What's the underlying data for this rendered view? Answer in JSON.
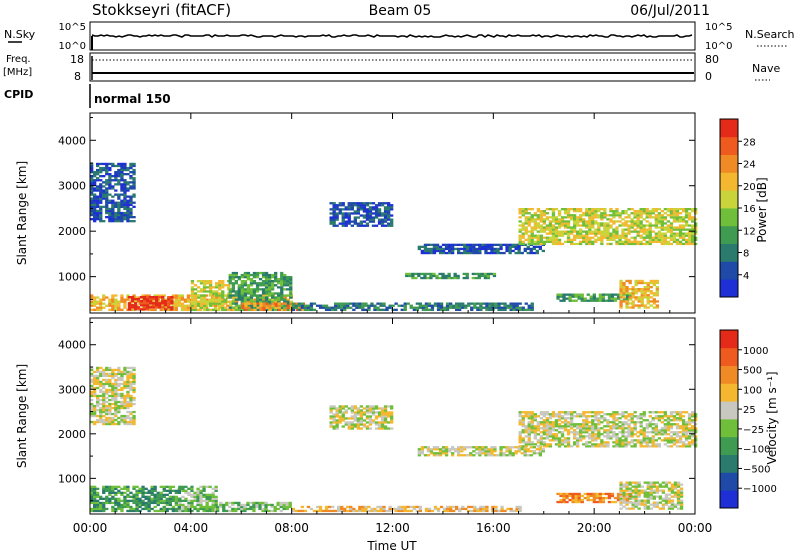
{
  "header": {
    "site": "Stokkseyri (fitACF)",
    "beam": "Beam 05",
    "date": "06/Jul/2011"
  },
  "strip": {
    "nsky_label": "N.Sky",
    "nsky_ticks": [
      "10^5",
      "10^0"
    ],
    "nsearch_label": "N.Search",
    "nsearch_ticks": [
      "10^5",
      "10^0"
    ],
    "freq_label": "Freq.",
    "freq_unit": "[MHz]",
    "freq_ticks": [
      "18",
      "8"
    ],
    "nave_label": "Nave",
    "nave_ticks": [
      "80",
      "0"
    ],
    "cpid_label": "CPID",
    "cpid_value": "normal 150"
  },
  "chart_data": [
    {
      "type": "heatmap",
      "name": "power-panel",
      "xlabel": "",
      "ylabel": "Slant Range [km]",
      "xticks": [
        "00:00",
        "04:00",
        "08:00",
        "12:00",
        "16:00",
        "20:00",
        "00:00"
      ],
      "xlim_hours": [
        0,
        24
      ],
      "ylim": [
        200,
        4600
      ],
      "yticks": [
        1000,
        2000,
        3000,
        4000
      ],
      "colorbar": {
        "label": "Power [dB]",
        "ticks": [
          "4",
          "8",
          "12",
          "16",
          "20",
          "24",
          "28"
        ],
        "range": [
          0,
          30
        ],
        "colors": [
          "#1f2fd6",
          "#1f4aa8",
          "#2a7a6e",
          "#3f9b52",
          "#6fbf3a",
          "#c8d43a",
          "#f4b830",
          "#f08a24",
          "#ef5a1e",
          "#e42a18"
        ]
      },
      "echo_regions": [
        {
          "t": [
            0.0,
            1.7
          ],
          "r": [
            2200,
            3500
          ],
          "level": 1
        },
        {
          "t": [
            0.0,
            8.0
          ],
          "r": [
            250,
            600
          ],
          "level": 6
        },
        {
          "t": [
            1.5,
            3.2
          ],
          "r": [
            260,
            560
          ],
          "level": 9
        },
        {
          "t": [
            4.0,
            5.5
          ],
          "r": [
            250,
            900
          ],
          "level": 5
        },
        {
          "t": [
            5.5,
            8.0
          ],
          "r": [
            250,
            1100
          ],
          "level": 3
        },
        {
          "t": [
            6.0,
            8.5
          ],
          "r": [
            250,
            400
          ],
          "level": 7
        },
        {
          "t": [
            8.0,
            17.5
          ],
          "r": [
            250,
            400
          ],
          "level": 2
        },
        {
          "t": [
            9.5,
            12.0
          ],
          "r": [
            2100,
            2600
          ],
          "level": 1
        },
        {
          "t": [
            12.5,
            16.0
          ],
          "r": [
            950,
            1050
          ],
          "level": 3
        },
        {
          "t": [
            13.0,
            18.0
          ],
          "r": [
            1500,
            1700
          ],
          "level": 1
        },
        {
          "t": [
            17.0,
            24.0
          ],
          "r": [
            1700,
            2500
          ],
          "level": 5
        },
        {
          "t": [
            18.5,
            21.5
          ],
          "r": [
            450,
            600
          ],
          "level": 3
        },
        {
          "t": [
            21.0,
            22.5
          ],
          "r": [
            300,
            900
          ],
          "level": 6
        }
      ]
    },
    {
      "type": "heatmap",
      "name": "velocity-panel",
      "xlabel": "Time UT",
      "ylabel": "Slant Range [km]",
      "xticks": [
        "00:00",
        "04:00",
        "08:00",
        "12:00",
        "16:00",
        "20:00",
        "00:00"
      ],
      "xlim_hours": [
        0,
        24
      ],
      "ylim": [
        200,
        4600
      ],
      "yticks": [
        1000,
        2000,
        3000,
        4000
      ],
      "colorbar": {
        "label": "Velocity [m s⁻¹]",
        "ticks": [
          "1000",
          "500",
          "100",
          "25",
          "−25",
          "−100",
          "−500",
          "−1000"
        ],
        "range": [
          -1000,
          1000
        ],
        "colors": [
          "#1f2fd6",
          "#1f4aa8",
          "#2a7a6e",
          "#3f9b52",
          "#6fbf3a",
          "#c8c8c0",
          "#f4b830",
          "#f08a24",
          "#ef5a1e",
          "#e42a18"
        ]
      },
      "echo_regions": [
        {
          "t": [
            0.0,
            1.7
          ],
          "r": [
            2200,
            3500
          ],
          "level": 5
        },
        {
          "t": [
            0.0,
            3.5
          ],
          "r": [
            250,
            800
          ],
          "level": 3
        },
        {
          "t": [
            3.5,
            5.0
          ],
          "r": [
            250,
            800
          ],
          "level": 4
        },
        {
          "t": [
            5.0,
            8.0
          ],
          "r": [
            250,
            450
          ],
          "level": 4
        },
        {
          "t": [
            8.0,
            17.0
          ],
          "r": [
            250,
            350
          ],
          "level": 6
        },
        {
          "t": [
            9.5,
            12.0
          ],
          "r": [
            2100,
            2600
          ],
          "level": 5
        },
        {
          "t": [
            13.0,
            18.0
          ],
          "r": [
            1500,
            1700
          ],
          "level": 5
        },
        {
          "t": [
            17.0,
            24.0
          ],
          "r": [
            1700,
            2500
          ],
          "level": 5
        },
        {
          "t": [
            18.5,
            21.5
          ],
          "r": [
            450,
            650
          ],
          "level": 7
        },
        {
          "t": [
            21.0,
            23.5
          ],
          "r": [
            300,
            900
          ],
          "level": 5
        }
      ]
    }
  ]
}
